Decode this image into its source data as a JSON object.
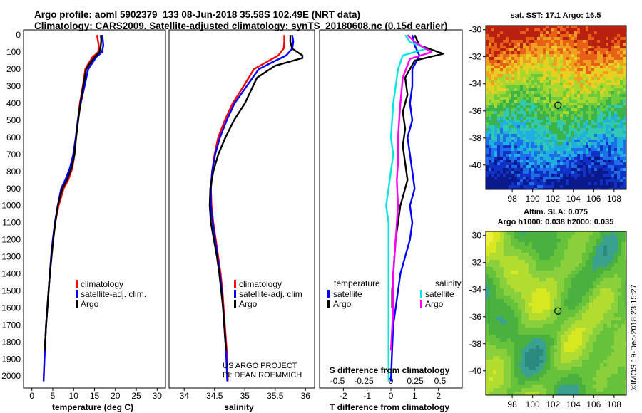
{
  "header": {
    "line1": "Argo profile: aoml 5902379_133 08-Jun-2018 35.58S 102.49E (NRT data)",
    "line2": "Climatology: CARS2009. Satellite-adjusted climatology: synTS_20180608.nc (0.15d earlier)"
  },
  "colors": {
    "climatology": "#ff0000",
    "satellite": "#0000ff",
    "argo": "#000000",
    "satellite_salinity": "#00e5e5",
    "argo_salinity": "#ff00ff"
  },
  "credits": {
    "project": "US ARGO PROJECT",
    "pi": "PI: DEAN ROEMMICH",
    "stamp": "©IMOS 19-Dec-2018 23:15:27"
  },
  "chart_data": [
    {
      "type": "line",
      "id": "temperature",
      "xlabel": "temperature (deg C)",
      "xlim": [
        -2,
        32
      ],
      "ylim": [
        2070,
        -30
      ],
      "xticks": [
        "0",
        "5",
        "10",
        "15",
        "20",
        "25",
        "30"
      ],
      "yticks": [
        "0",
        "100",
        "200",
        "300",
        "400",
        "500",
        "600",
        "700",
        "800",
        "900",
        "1000",
        "1100",
        "1200",
        "1300",
        "1400",
        "1500",
        "1600",
        "1700",
        "1800",
        "1900",
        "2000"
      ],
      "legend": [
        "climatology",
        "satellite-adj. clim.",
        "Argo"
      ],
      "series": [
        {
          "name": "climatology",
          "color": "#ff0000",
          "x": [
            15.6,
            15.8,
            16.0,
            15.9,
            14.5,
            13.5,
            12.8,
            12.2,
            11.5,
            11.0,
            10.6,
            10.2,
            9.7,
            8.7,
            7.6,
            6.4,
            5.6,
            5.1,
            4.7,
            4.3,
            4.0,
            3.7,
            3.4,
            3.1,
            2.8
          ],
          "y": [
            0,
            30,
            60,
            100,
            130,
            170,
            200,
            300,
            400,
            500,
            600,
            700,
            780,
            850,
            900,
            1000,
            1100,
            1200,
            1300,
            1400,
            1500,
            1600,
            1700,
            1850,
            2030
          ]
        },
        {
          "name": "satellite-adj. clim.",
          "color": "#0000ff",
          "x": [
            16.8,
            17.0,
            17.1,
            16.8,
            15.4,
            14.3,
            13.5,
            12.6,
            11.7,
            11.0,
            10.5,
            9.9,
            9.1,
            8.0,
            7.0,
            6.2,
            5.5,
            5.0,
            4.6,
            4.3,
            4.0,
            3.7,
            3.4,
            3.1,
            2.8
          ],
          "y": [
            0,
            30,
            60,
            100,
            130,
            170,
            200,
            300,
            400,
            500,
            600,
            700,
            780,
            850,
            900,
            1000,
            1100,
            1200,
            1300,
            1400,
            1500,
            1600,
            1700,
            1850,
            2030
          ]
        },
        {
          "name": "Argo",
          "color": "#000000",
          "x": [
            16.5,
            16.6,
            16.5,
            16.2,
            15.0,
            13.8,
            13.0,
            12.3,
            11.6,
            11.1,
            10.6,
            10.2,
            9.5,
            8.4,
            7.3,
            6.2,
            5.6,
            5.1,
            4.7,
            4.3,
            4.0,
            3.7,
            3.4,
            3.1
          ],
          "y": [
            0,
            30,
            60,
            100,
            130,
            170,
            200,
            300,
            400,
            500,
            600,
            700,
            780,
            850,
            900,
            1000,
            1100,
            1200,
            1300,
            1400,
            1500,
            1600,
            1700,
            1850
          ]
        }
      ]
    },
    {
      "type": "line",
      "id": "salinity",
      "xlabel": "salinity",
      "xlim": [
        33.75,
        36.15
      ],
      "ylim": [
        2070,
        -30
      ],
      "xticks": [
        "34",
        "34.5",
        "35",
        "35.5",
        "36"
      ],
      "legend": [
        "climatology",
        "satellite-adj. clim",
        "Argo"
      ],
      "series": [
        {
          "name": "climatology",
          "color": "#ff0000",
          "x": [
            35.65,
            35.65,
            35.64,
            35.55,
            35.35,
            35.15,
            34.98,
            34.8,
            34.67,
            34.56,
            34.5,
            34.46,
            34.44,
            34.45,
            34.48,
            34.52,
            34.56,
            34.6,
            34.63,
            34.65,
            34.67,
            34.7,
            34.72
          ],
          "y": [
            0,
            40,
            80,
            120,
            160,
            200,
            300,
            400,
            500,
            600,
            700,
            800,
            900,
            1000,
            1100,
            1200,
            1300,
            1400,
            1500,
            1600,
            1700,
            1850,
            2030
          ]
        },
        {
          "name": "satellite-adj. clim",
          "color": "#0000ff",
          "x": [
            35.78,
            35.8,
            35.78,
            35.68,
            35.45,
            35.23,
            35.03,
            34.83,
            34.7,
            34.59,
            34.51,
            34.46,
            34.44,
            34.44,
            34.47,
            34.51,
            34.55,
            34.59,
            34.62,
            34.64,
            34.66,
            34.69,
            34.71
          ],
          "y": [
            0,
            40,
            80,
            120,
            160,
            200,
            300,
            400,
            500,
            600,
            700,
            800,
            900,
            1000,
            1100,
            1200,
            1300,
            1400,
            1500,
            1600,
            1700,
            1850,
            2030
          ]
        },
        {
          "name": "Argo",
          "color": "#000000",
          "x": [
            35.75,
            35.75,
            35.78,
            35.95,
            35.95,
            35.5,
            35.2,
            35.0,
            34.82,
            34.68,
            34.56,
            34.48,
            34.43,
            34.42,
            34.44,
            34.49,
            34.54,
            34.58,
            34.61,
            34.64,
            34.66,
            34.69
          ],
          "y": [
            0,
            40,
            80,
            120,
            135,
            180,
            250,
            400,
            500,
            600,
            700,
            800,
            900,
            1000,
            1100,
            1200,
            1300,
            1400,
            1500,
            1600,
            1700,
            1850
          ]
        }
      ]
    },
    {
      "type": "line",
      "id": "difference",
      "xlabel": "T difference from climatology",
      "xlabel_top": "S difference from climatology",
      "xlim": [
        -3,
        3
      ],
      "ylim": [
        2070,
        -30
      ],
      "xticks": [
        "-2",
        "-1",
        "0",
        "1",
        "2"
      ],
      "xticks_top": [
        "-0.5",
        "-0.25",
        "0",
        "0.25",
        "0.5"
      ],
      "legend_titles": [
        "temperature",
        "salinity"
      ],
      "legend": [
        "satellite",
        "Argo",
        "satellite",
        "Argo"
      ],
      "series": [
        {
          "name": "satellite (temperature)",
          "color": "#0000ff",
          "x": [
            0.9,
            1.0,
            1.2,
            0.9,
            0.9,
            0.8,
            0.9,
            0.7,
            0.8,
            0.9,
            1.0,
            0.8,
            0.9,
            0.8,
            0.6,
            0.4,
            0.3,
            0.2,
            0.1,
            0.05,
            0.0
          ],
          "y": [
            0,
            60,
            120,
            200,
            300,
            400,
            500,
            600,
            700,
            800,
            900,
            1000,
            1100,
            1200,
            1300,
            1400,
            1500,
            1600,
            1700,
            1850,
            2030
          ]
        },
        {
          "name": "Argo (temperature)",
          "color": "#000000",
          "x": [
            1.0,
            1.2,
            2.2,
            1.0,
            0.6,
            0.7,
            0.5,
            0.6,
            0.5,
            0.6,
            0.7,
            0.4,
            0.3,
            0.2,
            0.15,
            0.1,
            0.05,
            0.05
          ],
          "y": [
            0,
            60,
            110,
            150,
            250,
            350,
            450,
            550,
            650,
            750,
            850,
            1000,
            1100,
            1200,
            1300,
            1400,
            1500,
            1600
          ]
        },
        {
          "name": "satellite (salinity)",
          "color": "#00e5e5",
          "x": [
            0.6,
            0.8,
            1.5,
            0.5,
            0.3,
            0.2,
            0.1,
            0.05,
            0.0,
            0.1,
            0.0,
            -0.1,
            -0.2,
            -0.1,
            -0.1,
            -0.1,
            -0.1,
            -0.1
          ],
          "y": [
            0,
            40,
            80,
            120,
            200,
            300,
            400,
            500,
            600,
            700,
            800,
            900,
            1000,
            1100,
            1200,
            1300,
            1500,
            2030
          ]
        },
        {
          "name": "Argo (salinity)",
          "color": "#ff00ff",
          "x": [
            0.7,
            1.0,
            1.7,
            0.8,
            0.5,
            0.4,
            0.3,
            0.3,
            0.25,
            0.3,
            0.2,
            0.1,
            0.1,
            0.0
          ],
          "y": [
            0,
            40,
            100,
            140,
            250,
            400,
            600,
            750,
            850,
            1000,
            1200,
            1400,
            1600,
            1850
          ]
        }
      ]
    },
    {
      "type": "heatmap",
      "id": "sst-map",
      "title": "sat. SST: 17.1 Argo: 16.5",
      "xlim": [
        95.4,
        109.2
      ],
      "ylim": [
        -41.8,
        -29.7
      ],
      "xticks": [
        "98",
        "100",
        "102",
        "104",
        "106",
        "108"
      ],
      "yticks": [
        "-30",
        "-32",
        "-34",
        "-36",
        "-38",
        "-40"
      ],
      "profile_marker": {
        "lon": 102.49,
        "lat": -35.58
      }
    },
    {
      "type": "heatmap",
      "id": "sla-map",
      "title": "Altim. SLA: 0.075",
      "subtitle": "Argo h1000: 0.038 h2000: 0.035",
      "xlim": [
        95.4,
        109.2
      ],
      "ylim": [
        -41.8,
        -29.7
      ],
      "xticks": [
        "98",
        "100",
        "102",
        "104",
        "106",
        "108"
      ],
      "yticks": [
        "-30",
        "-32",
        "-34",
        "-36",
        "-38",
        "-40"
      ],
      "profile_marker": {
        "lon": 102.49,
        "lat": -35.58
      }
    }
  ]
}
